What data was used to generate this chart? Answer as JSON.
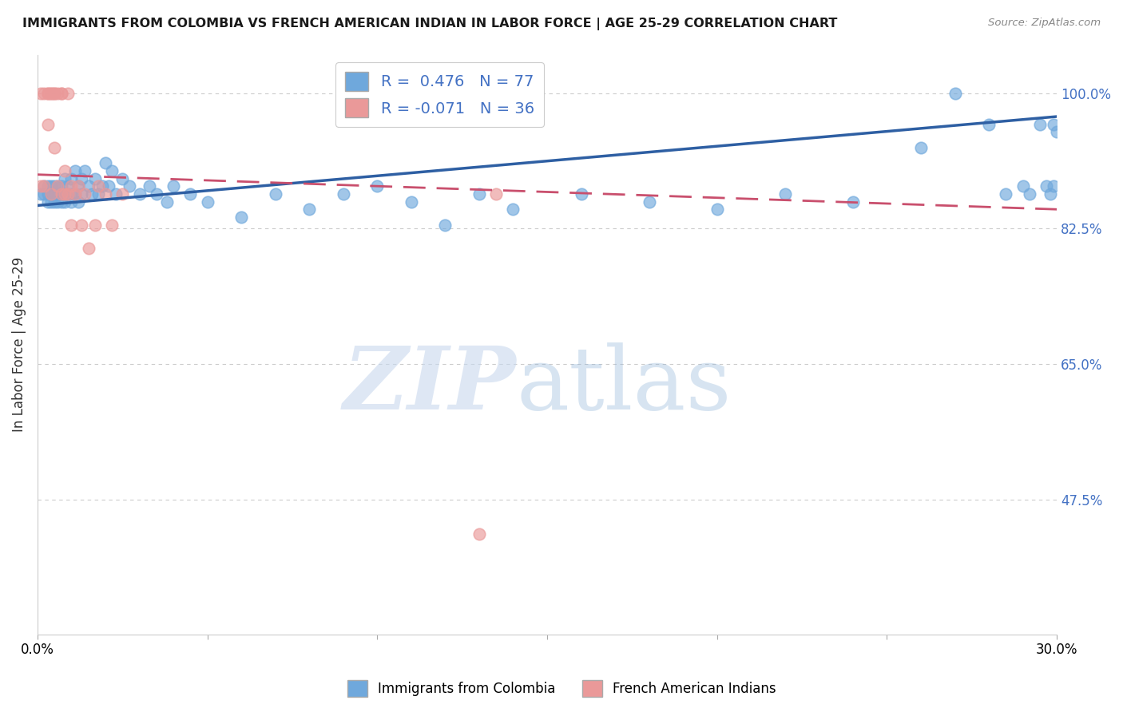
{
  "title": "IMMIGRANTS FROM COLOMBIA VS FRENCH AMERICAN INDIAN IN LABOR FORCE | AGE 25-29 CORRELATION CHART",
  "source_text": "Source: ZipAtlas.com",
  "ylabel": "In Labor Force | Age 25-29",
  "ytick_labels": [
    "100.0%",
    "82.5%",
    "65.0%",
    "47.5%"
  ],
  "ytick_values": [
    1.0,
    0.825,
    0.65,
    0.475
  ],
  "xlim": [
    0.0,
    0.3
  ],
  "ylim": [
    0.3,
    1.05
  ],
  "R_blue": 0.476,
  "N_blue": 77,
  "R_pink": -0.071,
  "N_pink": 36,
  "blue_color": "#6fa8dc",
  "pink_color": "#ea9999",
  "line_blue": "#2e5fa3",
  "line_pink": "#c94f6d",
  "legend_label_blue": "Immigrants from Colombia",
  "legend_label_pink": "French American Indians",
  "blue_x": [
    0.001,
    0.002,
    0.002,
    0.003,
    0.003,
    0.003,
    0.004,
    0.004,
    0.004,
    0.005,
    0.005,
    0.005,
    0.006,
    0.006,
    0.006,
    0.007,
    0.007,
    0.007,
    0.008,
    0.008,
    0.008,
    0.009,
    0.009,
    0.01,
    0.01,
    0.01,
    0.011,
    0.011,
    0.012,
    0.012,
    0.013,
    0.013,
    0.014,
    0.015,
    0.016,
    0.017,
    0.018,
    0.019,
    0.02,
    0.021,
    0.022,
    0.023,
    0.025,
    0.027,
    0.03,
    0.033,
    0.035,
    0.038,
    0.04,
    0.045,
    0.05,
    0.06,
    0.07,
    0.08,
    0.09,
    0.1,
    0.11,
    0.12,
    0.13,
    0.14,
    0.16,
    0.18,
    0.2,
    0.22,
    0.24,
    0.26,
    0.27,
    0.28,
    0.285,
    0.29,
    0.292,
    0.295,
    0.297,
    0.298,
    0.299,
    0.299,
    0.3
  ],
  "blue_y": [
    0.87,
    0.88,
    0.87,
    0.88,
    0.87,
    0.86,
    0.87,
    0.88,
    0.86,
    0.87,
    0.88,
    0.86,
    0.87,
    0.88,
    0.86,
    0.88,
    0.87,
    0.86,
    0.89,
    0.87,
    0.86,
    0.88,
    0.87,
    0.89,
    0.87,
    0.86,
    0.9,
    0.87,
    0.88,
    0.86,
    0.89,
    0.87,
    0.9,
    0.88,
    0.87,
    0.89,
    0.87,
    0.88,
    0.91,
    0.88,
    0.9,
    0.87,
    0.89,
    0.88,
    0.87,
    0.88,
    0.87,
    0.86,
    0.88,
    0.87,
    0.86,
    0.84,
    0.87,
    0.85,
    0.87,
    0.88,
    0.86,
    0.83,
    0.87,
    0.85,
    0.87,
    0.86,
    0.85,
    0.87,
    0.86,
    0.93,
    1.0,
    0.96,
    0.87,
    0.88,
    0.87,
    0.96,
    0.88,
    0.87,
    0.88,
    0.96,
    0.95
  ],
  "pink_x": [
    0.001,
    0.001,
    0.002,
    0.002,
    0.003,
    0.003,
    0.003,
    0.004,
    0.004,
    0.004,
    0.005,
    0.005,
    0.005,
    0.006,
    0.006,
    0.007,
    0.007,
    0.007,
    0.008,
    0.008,
    0.009,
    0.009,
    0.01,
    0.01,
    0.011,
    0.012,
    0.013,
    0.014,
    0.015,
    0.017,
    0.018,
    0.02,
    0.022,
    0.025,
    0.13,
    0.135
  ],
  "pink_y": [
    0.88,
    1.0,
    1.0,
    0.88,
    1.0,
    1.0,
    0.96,
    1.0,
    1.0,
    0.87,
    1.0,
    1.0,
    0.93,
    1.0,
    0.88,
    1.0,
    1.0,
    0.87,
    0.9,
    0.87,
    1.0,
    0.87,
    0.88,
    0.83,
    0.87,
    0.88,
    0.83,
    0.87,
    0.8,
    0.83,
    0.88,
    0.87,
    0.83,
    0.87,
    0.43,
    0.87
  ],
  "blue_line_x": [
    0.0,
    0.3
  ],
  "blue_line_y": [
    0.855,
    0.97
  ],
  "pink_line_x": [
    0.0,
    0.3
  ],
  "pink_line_y": [
    0.895,
    0.85
  ]
}
